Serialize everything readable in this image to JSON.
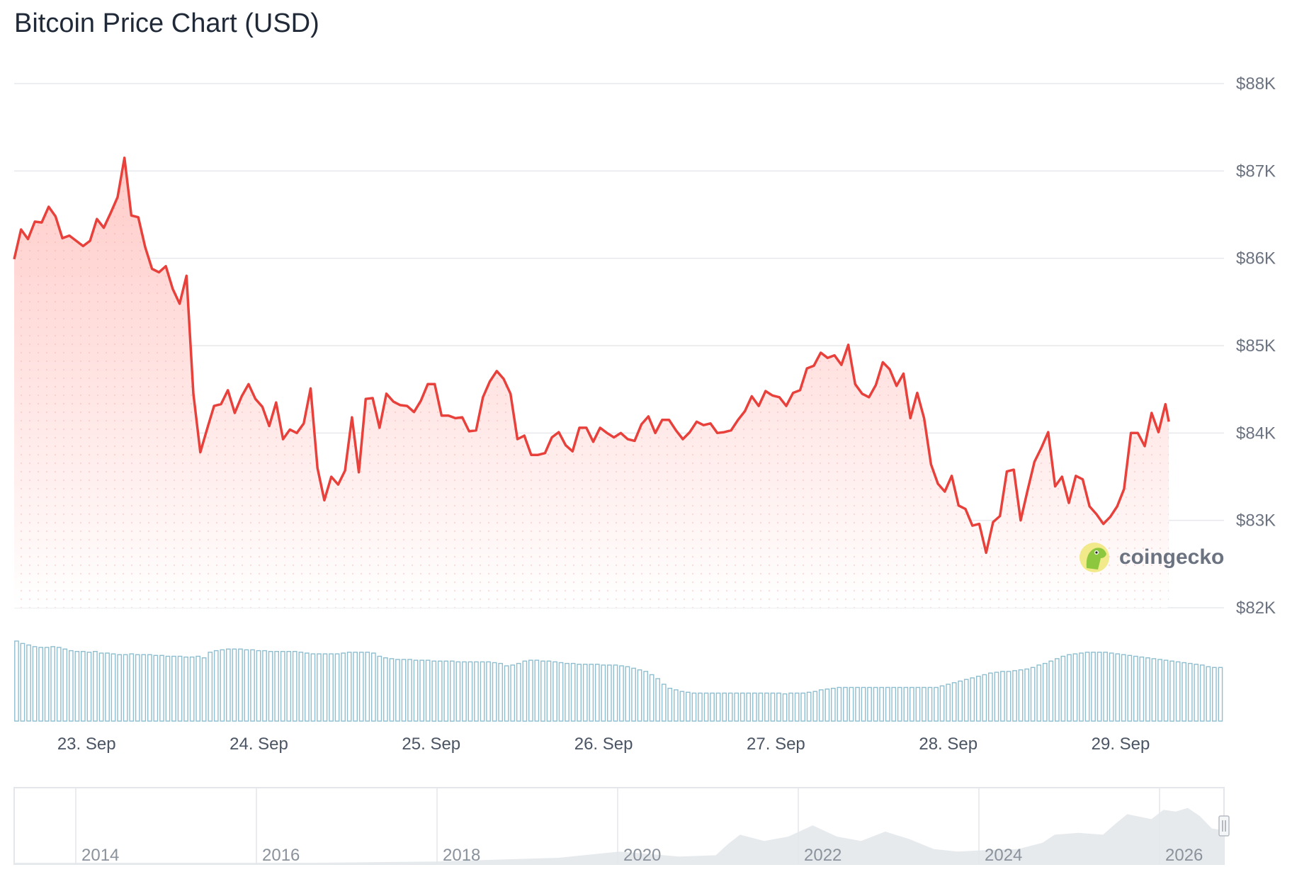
{
  "title": "Bitcoin Price Chart (USD)",
  "brand": {
    "name": "coingecko",
    "color": "#8dc63f"
  },
  "colors": {
    "line": "#e8403b",
    "area_top": "#ffd1cf",
    "volume": "#8fbecf",
    "navigator_area": "#e7eaed"
  },
  "chart_data": {
    "type": "line",
    "title": "Bitcoin Price Chart (USD)",
    "y_axis": {
      "position": "right",
      "ylim": [
        82000,
        88000
      ],
      "ticks": [
        88000,
        87000,
        86000,
        85000,
        84000,
        83000,
        82000
      ],
      "tick_labels": [
        "$88K",
        "$87K",
        "$86K",
        "$85K",
        "$84K",
        "$83K",
        "$82K"
      ]
    },
    "x_axis": {
      "start": 22.58,
      "end": 29.6,
      "ticks": [
        23,
        24,
        25,
        26,
        27,
        28,
        29
      ],
      "tick_labels": [
        "23. Sep",
        "24. Sep",
        "25. Sep",
        "26. Sep",
        "27. Sep",
        "28. Sep",
        "29. Sep"
      ]
    },
    "grid": true,
    "series": [
      {
        "type": "line",
        "points": [
          [
            22.58,
            85990
          ],
          [
            22.62,
            86330
          ],
          [
            22.66,
            86220
          ],
          [
            22.7,
            86420
          ],
          [
            22.74,
            86410
          ],
          [
            22.78,
            86590
          ],
          [
            22.82,
            86480
          ],
          [
            22.86,
            86230
          ],
          [
            22.9,
            86260
          ],
          [
            22.94,
            86200
          ],
          [
            22.98,
            86140
          ],
          [
            23.02,
            86200
          ],
          [
            23.06,
            86450
          ],
          [
            23.1,
            86350
          ],
          [
            23.14,
            86520
          ],
          [
            23.18,
            86700
          ],
          [
            23.22,
            87150
          ],
          [
            23.26,
            86490
          ],
          [
            23.3,
            86470
          ],
          [
            23.34,
            86130
          ],
          [
            23.38,
            85880
          ],
          [
            23.42,
            85840
          ],
          [
            23.46,
            85910
          ],
          [
            23.5,
            85650
          ],
          [
            23.54,
            85480
          ],
          [
            23.58,
            85800
          ],
          [
            23.62,
            84450
          ],
          [
            23.66,
            83780
          ],
          [
            23.7,
            84050
          ],
          [
            23.74,
            84310
          ],
          [
            23.78,
            84330
          ],
          [
            23.82,
            84490
          ],
          [
            23.86,
            84230
          ],
          [
            23.9,
            84420
          ],
          [
            23.94,
            84560
          ],
          [
            23.98,
            84390
          ],
          [
            24.02,
            84300
          ],
          [
            24.06,
            84080
          ],
          [
            24.1,
            84350
          ],
          [
            24.14,
            83930
          ],
          [
            24.18,
            84040
          ],
          [
            24.22,
            84000
          ],
          [
            24.26,
            84110
          ],
          [
            24.3,
            84510
          ],
          [
            24.34,
            83600
          ],
          [
            24.38,
            83230
          ],
          [
            24.42,
            83500
          ],
          [
            24.46,
            83410
          ],
          [
            24.5,
            83570
          ],
          [
            24.54,
            84180
          ],
          [
            24.58,
            83550
          ],
          [
            24.62,
            84390
          ],
          [
            24.66,
            84400
          ],
          [
            24.7,
            84060
          ],
          [
            24.74,
            84450
          ],
          [
            24.78,
            84360
          ],
          [
            24.82,
            84320
          ],
          [
            24.86,
            84310
          ],
          [
            24.9,
            84240
          ],
          [
            24.94,
            84370
          ],
          [
            24.98,
            84560
          ],
          [
            25.02,
            84560
          ],
          [
            25.06,
            84200
          ],
          [
            25.1,
            84200
          ],
          [
            25.14,
            84170
          ],
          [
            25.18,
            84180
          ],
          [
            25.22,
            84020
          ],
          [
            25.26,
            84030
          ],
          [
            25.3,
            84410
          ],
          [
            25.34,
            84590
          ],
          [
            25.38,
            84710
          ],
          [
            25.42,
            84620
          ],
          [
            25.46,
            84450
          ],
          [
            25.5,
            83930
          ],
          [
            25.54,
            83970
          ],
          [
            25.58,
            83750
          ],
          [
            25.62,
            83750
          ],
          [
            25.66,
            83770
          ],
          [
            25.7,
            83950
          ],
          [
            25.74,
            84010
          ],
          [
            25.78,
            83860
          ],
          [
            25.82,
            83790
          ],
          [
            25.86,
            84060
          ],
          [
            25.9,
            84060
          ],
          [
            25.94,
            83900
          ],
          [
            25.98,
            84060
          ],
          [
            26.02,
            84000
          ],
          [
            26.06,
            83950
          ],
          [
            26.1,
            84000
          ],
          [
            26.14,
            83930
          ],
          [
            26.18,
            83910
          ],
          [
            26.22,
            84100
          ],
          [
            26.26,
            84190
          ],
          [
            26.3,
            84000
          ],
          [
            26.34,
            84150
          ],
          [
            26.38,
            84150
          ],
          [
            26.42,
            84030
          ],
          [
            26.46,
            83930
          ],
          [
            26.5,
            84010
          ],
          [
            26.54,
            84130
          ],
          [
            26.58,
            84090
          ],
          [
            26.62,
            84110
          ],
          [
            26.66,
            84000
          ],
          [
            26.7,
            84010
          ],
          [
            26.74,
            84030
          ],
          [
            26.78,
            84150
          ],
          [
            26.82,
            84250
          ],
          [
            26.86,
            84420
          ],
          [
            26.9,
            84310
          ],
          [
            26.94,
            84480
          ],
          [
            26.98,
            84430
          ],
          [
            27.02,
            84410
          ],
          [
            27.06,
            84310
          ],
          [
            27.1,
            84460
          ],
          [
            27.14,
            84490
          ],
          [
            27.18,
            84740
          ],
          [
            27.22,
            84770
          ],
          [
            27.26,
            84920
          ],
          [
            27.3,
            84860
          ],
          [
            27.34,
            84890
          ],
          [
            27.38,
            84780
          ],
          [
            27.42,
            85010
          ],
          [
            27.46,
            84560
          ],
          [
            27.5,
            84450
          ],
          [
            27.54,
            84410
          ],
          [
            27.58,
            84550
          ],
          [
            27.62,
            84810
          ],
          [
            27.66,
            84730
          ],
          [
            27.7,
            84540
          ],
          [
            27.74,
            84680
          ],
          [
            27.78,
            84170
          ],
          [
            27.82,
            84460
          ],
          [
            27.86,
            84170
          ],
          [
            27.9,
            83640
          ],
          [
            27.94,
            83420
          ],
          [
            27.98,
            83330
          ],
          [
            28.02,
            83510
          ],
          [
            28.06,
            83170
          ],
          [
            28.1,
            83130
          ],
          [
            28.14,
            82940
          ],
          [
            28.18,
            82960
          ],
          [
            28.22,
            82630
          ],
          [
            28.26,
            82980
          ],
          [
            28.3,
            83050
          ],
          [
            28.34,
            83560
          ],
          [
            28.38,
            83580
          ],
          [
            28.42,
            83000
          ],
          [
            28.46,
            83340
          ],
          [
            28.5,
            83670
          ],
          [
            28.54,
            83830
          ],
          [
            28.58,
            84010
          ],
          [
            28.62,
            83390
          ],
          [
            28.66,
            83500
          ],
          [
            28.7,
            83200
          ],
          [
            28.74,
            83510
          ],
          [
            28.78,
            83470
          ],
          [
            28.82,
            83160
          ],
          [
            28.86,
            83070
          ],
          [
            28.9,
            82960
          ],
          [
            28.94,
            83040
          ],
          [
            28.98,
            83160
          ],
          [
            29.02,
            83360
          ],
          [
            29.06,
            84000
          ],
          [
            29.1,
            84000
          ],
          [
            29.14,
            83850
          ],
          [
            29.18,
            84230
          ],
          [
            29.22,
            84010
          ],
          [
            29.26,
            84330
          ],
          [
            29.28,
            84130
          ]
        ]
      }
    ],
    "volume_relative": [
      1.0,
      0.97,
      0.95,
      0.93,
      0.92,
      0.92,
      0.93,
      0.92,
      0.9,
      0.88,
      0.87,
      0.87,
      0.86,
      0.87,
      0.85,
      0.85,
      0.84,
      0.83,
      0.83,
      0.84,
      0.83,
      0.83,
      0.83,
      0.82,
      0.82,
      0.81,
      0.81,
      0.81,
      0.8,
      0.8,
      0.81,
      0.79,
      0.86,
      0.88,
      0.89,
      0.9,
      0.9,
      0.9,
      0.89,
      0.89,
      0.88,
      0.88,
      0.87,
      0.87,
      0.87,
      0.87,
      0.87,
      0.86,
      0.85,
      0.84,
      0.84,
      0.84,
      0.84,
      0.84,
      0.85,
      0.86,
      0.86,
      0.86,
      0.86,
      0.85,
      0.81,
      0.79,
      0.78,
      0.77,
      0.77,
      0.77,
      0.76,
      0.76,
      0.76,
      0.75,
      0.75,
      0.75,
      0.75,
      0.74,
      0.74,
      0.74,
      0.74,
      0.74,
      0.74,
      0.73,
      0.72,
      0.69,
      0.7,
      0.72,
      0.75,
      0.76,
      0.76,
      0.75,
      0.75,
      0.74,
      0.73,
      0.72,
      0.72,
      0.71,
      0.71,
      0.71,
      0.71,
      0.7,
      0.7,
      0.7,
      0.69,
      0.68,
      0.66,
      0.64,
      0.62,
      0.58,
      0.53,
      0.46,
      0.41,
      0.39,
      0.37,
      0.36,
      0.35,
      0.35,
      0.35,
      0.35,
      0.35,
      0.35,
      0.35,
      0.35,
      0.35,
      0.35,
      0.35,
      0.35,
      0.35,
      0.35,
      0.35,
      0.34,
      0.35,
      0.35,
      0.35,
      0.36,
      0.37,
      0.39,
      0.4,
      0.41,
      0.42,
      0.42,
      0.42,
      0.42,
      0.42,
      0.42,
      0.42,
      0.42,
      0.42,
      0.42,
      0.42,
      0.42,
      0.42,
      0.42,
      0.42,
      0.42,
      0.42,
      0.44,
      0.46,
      0.48,
      0.5,
      0.52,
      0.54,
      0.56,
      0.58,
      0.6,
      0.61,
      0.62,
      0.62,
      0.63,
      0.64,
      0.65,
      0.67,
      0.7,
      0.72,
      0.75,
      0.78,
      0.81,
      0.83,
      0.84,
      0.85,
      0.86,
      0.86,
      0.86,
      0.86,
      0.85,
      0.84,
      0.83,
      0.82,
      0.81,
      0.8,
      0.79,
      0.78,
      0.77,
      0.76,
      0.75,
      0.74,
      0.73,
      0.72,
      0.71,
      0.7,
      0.68,
      0.67,
      0.67
    ],
    "navigator": {
      "tick_labels": [
        "2014",
        "2016",
        "2018",
        "2020",
        "2022",
        "2024",
        "2026"
      ]
    }
  }
}
